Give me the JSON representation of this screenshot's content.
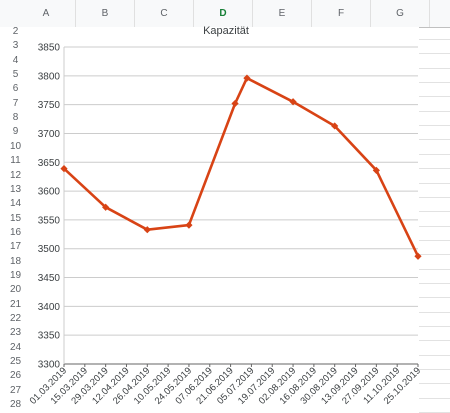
{
  "sheet": {
    "columns": [
      "A",
      "B",
      "C",
      "D",
      "E",
      "F",
      "G"
    ],
    "active_column": "D",
    "rows": [
      "2",
      "3",
      "4",
      "5",
      "6",
      "7",
      "8",
      "9",
      "10",
      "11",
      "12",
      "13",
      "14",
      "15",
      "16",
      "17",
      "18",
      "19",
      "20",
      "21",
      "22",
      "23",
      "24",
      "25",
      "26",
      "27",
      "28"
    ]
  },
  "chart_data": {
    "type": "line",
    "title": "Kapazität",
    "x": [
      "01.03.2019",
      "15.03.2019",
      "29.03.2019",
      "12.04.2019",
      "26.04.2019",
      "10.05.2019",
      "24.05.2019",
      "07.06.2019",
      "21.06.2019",
      "05.07.2019",
      "19.07.2019",
      "02.08.2019",
      "16.08.2019",
      "30.08.2019",
      "13.09.2019",
      "27.09.2019",
      "11.10.2019",
      "25.10.2019"
    ],
    "series": [
      {
        "points": [
          {
            "x": "01.03.2019",
            "y": 3639
          },
          {
            "x": "29.03.2019",
            "y": 3572
          },
          {
            "x": "26.04.2019",
            "y": 3533
          },
          {
            "x": "24.05.2019",
            "y": 3541
          },
          {
            "x": "24.06.2019",
            "y": 3752
          },
          {
            "x": "02.07.2019",
            "y": 3796
          },
          {
            "x": "02.08.2019",
            "y": 3755
          },
          {
            "x": "30.08.2019",
            "y": 3713
          },
          {
            "x": "27.09.2019",
            "y": 3636
          },
          {
            "x": "25.10.2019",
            "y": 3487
          }
        ]
      }
    ],
    "ylim": [
      3300,
      3850
    ],
    "yticks": [
      3300,
      3350,
      3400,
      3450,
      3500,
      3550,
      3600,
      3650,
      3700,
      3750,
      3800,
      3850
    ],
    "grid": true,
    "colors": {
      "line": "#d84315"
    }
  }
}
